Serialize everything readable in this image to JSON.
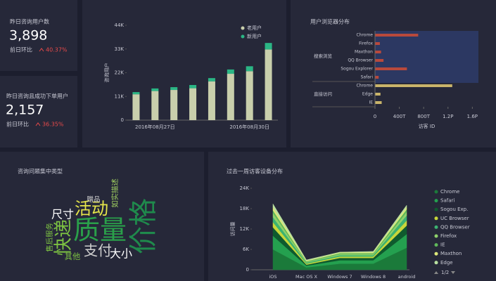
{
  "kpis": [
    {
      "title": "昨日咨询用户数",
      "value": "3,898",
      "compare_label": "前日环比",
      "change": "40.37%"
    },
    {
      "title": "昨日咨询且成功下单用户",
      "value": "2,157",
      "compare_label": "前日环比",
      "change": "36.35%"
    }
  ],
  "chart_data": [
    {
      "type": "stacked-bar",
      "y_label": "咨询用户",
      "categories": [
        null,
        "2016年08月27日",
        null,
        null,
        null,
        null,
        "2016年08月30日",
        null
      ],
      "series": [
        {
          "name": "老用户",
          "color": "#c9cfac",
          "values": [
            12000,
            13500,
            14000,
            14800,
            18000,
            21500,
            22700,
            32800
          ]
        },
        {
          "name": "新用户",
          "color": "#2bb685",
          "values": [
            1000,
            1200,
            1300,
            1500,
            1500,
            2000,
            2300,
            3000
          ]
        }
      ],
      "ylim": [
        0,
        44000
      ],
      "yticks": [
        0,
        {
          "value": 11000,
          "label": "11K"
        },
        {
          "value": 22000,
          "label": "22K"
        },
        {
          "value": 33000,
          "label": "33K"
        },
        {
          "value": 44000,
          "label": "44K"
        }
      ],
      "grid": false
    },
    {
      "type": "grouped-hbar",
      "title": "用户浏览器分布",
      "x_label": "访客 ID",
      "groups": [
        {
          "label": "搜索浏览",
          "color": "#b8493c",
          "categories": [
            "Chrome",
            "Firefox",
            "Maxthon",
            "QQ Browser",
            "Sogou Explorer",
            "Safari"
          ],
          "values": [
            710,
            80,
            100,
            140,
            525,
            60
          ]
        },
        {
          "label": "直接访问",
          "color": "#c9b46a",
          "categories": [
            "Chrome",
            "Edge",
            "IE"
          ],
          "values": [
            1270,
            90,
            110
          ]
        }
      ],
      "xlim": [
        0,
        1700
      ],
      "xticks": [
        0,
        {
          "value": 400,
          "label": "400T"
        },
        {
          "value": 800,
          "label": "800T"
        },
        {
          "value": 1200,
          "label": "1.2P"
        },
        {
          "value": 1600,
          "label": "1.6P"
        }
      ]
    },
    {
      "type": "wordcloud",
      "title": "咨询问题集中类型",
      "words": [
        {
          "text": "价格",
          "weight": 100,
          "color": "#1f8a4c"
        },
        {
          "text": "质量",
          "weight": 95,
          "color": "#2aa04a"
        },
        {
          "text": "快递",
          "weight": 65,
          "color": "#7cc142"
        },
        {
          "text": "活动",
          "weight": 60,
          "color": "#e6e64a"
        },
        {
          "text": "支付",
          "weight": 50,
          "color": "#cfcfcf"
        },
        {
          "text": "大小",
          "weight": 40,
          "color": "#ffffff"
        },
        {
          "text": "尺寸",
          "weight": 40,
          "color": "#ffffff"
        },
        {
          "text": "其他",
          "weight": 28,
          "color": "#7cc142"
        },
        {
          "text": "售后服务",
          "weight": 26,
          "color": "#7cc142"
        },
        {
          "text": "如实描述",
          "weight": 26,
          "color": "#a0d060"
        },
        {
          "text": "赠品",
          "weight": 24,
          "color": "#cfcfcf"
        }
      ]
    },
    {
      "type": "stacked-area",
      "title": "过去一周访客设备分布",
      "y_label": "访问量",
      "categories": [
        "iOS",
        "Mac OS X",
        "Windows 7",
        "Windows 8",
        "android"
      ],
      "series": [
        {
          "name": "Chrome",
          "color": "#1b7a3a",
          "values": [
            6000,
            700,
            1800,
            1800,
            6500
          ]
        },
        {
          "name": "Safari",
          "color": "#24a04f",
          "values": [
            4000,
            500,
            1000,
            1000,
            4000
          ]
        },
        {
          "name": "Sogou Exp.",
          "color": "#0f5a2e",
          "values": [
            2500,
            300,
            700,
            700,
            2500
          ]
        },
        {
          "name": "UC Browser",
          "color": "#c8d63a",
          "values": [
            1500,
            300,
            400,
            400,
            1500
          ]
        },
        {
          "name": "QQ Browser",
          "color": "#3cb371",
          "values": [
            1500,
            300,
            400,
            400,
            1500
          ]
        },
        {
          "name": "Firefox",
          "color": "#8fd16b",
          "values": [
            1200,
            200,
            300,
            300,
            1000
          ]
        },
        {
          "name": "IE",
          "color": "#5fb85a",
          "values": [
            800,
            200,
            300,
            300,
            800
          ]
        },
        {
          "name": "Maxthon",
          "color": "#dde87a",
          "values": [
            1000,
            200,
            200,
            300,
            700
          ]
        },
        {
          "name": "Edge",
          "color": "#b8e0a0",
          "values": [
            900,
            200,
            100,
            200,
            500
          ]
        }
      ],
      "ylim": [
        0,
        24000
      ],
      "yticks": [
        0,
        {
          "value": 6000,
          "label": "6K"
        },
        {
          "value": 12000,
          "label": "12K"
        },
        {
          "value": 18000,
          "label": "18K"
        },
        {
          "value": 24000,
          "label": "24K"
        }
      ],
      "legend_page": "1/2"
    }
  ]
}
